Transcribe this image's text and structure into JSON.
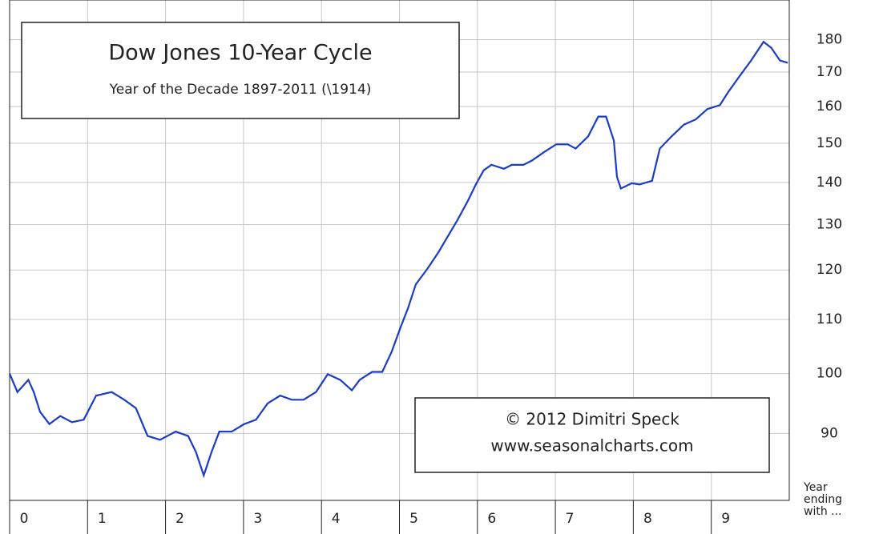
{
  "chart_data": {
    "type": "line",
    "title": "Dow Jones 10-Year Cycle",
    "subtitle": "Year of the Decade  1897-2011 (\\1914)",
    "annotations": [
      "© 2012  Dimitri Speck",
      "www.seasonalcharts.com"
    ],
    "x_label": "Year ending with ...",
    "log": true,
    "grid": true,
    "xlim": [
      0,
      10
    ],
    "xticks": [
      0,
      1,
      2,
      3,
      4,
      5,
      6,
      7,
      8,
      9
    ],
    "ylim": [
      80,
      193
    ],
    "yticks": [
      90,
      100,
      110,
      120,
      130,
      140,
      150,
      160,
      170,
      180
    ],
    "x": [
      0,
      0.1,
      0.24,
      0.31,
      0.39,
      0.51,
      0.65,
      0.8,
      0.95,
      1.11,
      1.31,
      1.47,
      1.62,
      1.77,
      1.93,
      2.13,
      2.29,
      2.39,
      2.49,
      2.59,
      2.69,
      2.85,
      3.01,
      3.16,
      3.31,
      3.47,
      3.62,
      3.77,
      3.93,
      4.08,
      4.24,
      4.39,
      4.49,
      4.65,
      4.78,
      4.9,
      5.01,
      5.11,
      5.21,
      5.36,
      5.5,
      5.62,
      5.74,
      5.88,
      5.98,
      6.08,
      6.18,
      6.34,
      6.44,
      6.59,
      6.7,
      6.85,
      7.01,
      7.16,
      7.26,
      7.42,
      7.55,
      7.65,
      7.75,
      7.79,
      7.84,
      7.98,
      8.08,
      8.24,
      8.34,
      8.49,
      8.65,
      8.8,
      8.95,
      9.11,
      9.21,
      9.36,
      9.51,
      9.67,
      9.77,
      9.88,
      9.98
    ],
    "series": [
      {
        "name": "Dow Jones",
        "color": "#1a3cc8",
        "values": [
          100,
          96.8,
          98.9,
          96.8,
          93.5,
          91.5,
          92.8,
          91.8,
          92.2,
          96.2,
          96.8,
          95.5,
          94.1,
          89.6,
          89.0,
          90.3,
          89.6,
          87.1,
          83.6,
          87.1,
          90.3,
          90.3,
          91.5,
          92.2,
          94.9,
          96.2,
          95.5,
          95.5,
          96.8,
          99.9,
          98.9,
          97.1,
          98.9,
          100.3,
          100.3,
          103.9,
          108.3,
          112.2,
          117.0,
          120.3,
          123.8,
          127.3,
          130.9,
          135.6,
          139.5,
          143.0,
          144.4,
          143.4,
          144.4,
          144.4,
          145.5,
          147.6,
          149.7,
          149.7,
          148.6,
          151.8,
          157.2,
          157.2,
          150.7,
          141.4,
          138.5,
          139.8,
          139.5,
          140.4,
          148.6,
          151.8,
          155.0,
          156.4,
          159.3,
          160.4,
          163.9,
          168.7,
          173.5,
          179.3,
          177.4,
          173.5,
          172.8
        ]
      }
    ]
  }
}
